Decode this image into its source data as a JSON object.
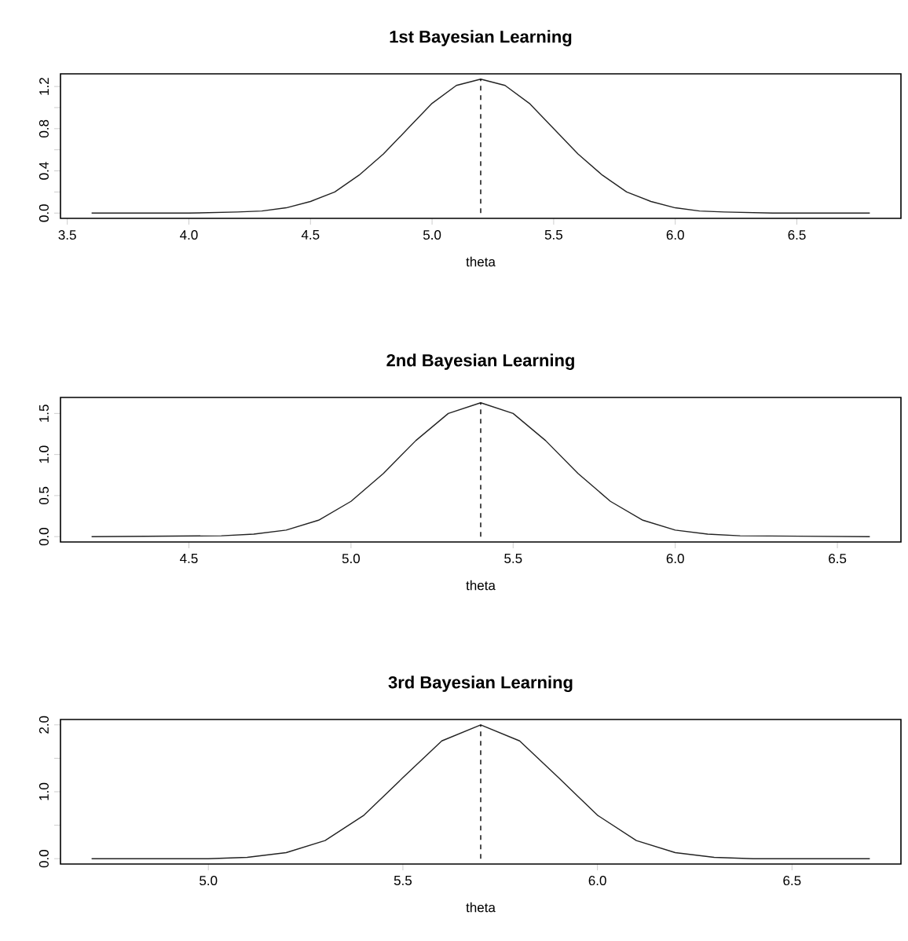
{
  "chart_data": [
    {
      "type": "line",
      "title": "1st Bayesian Learning",
      "xlabel": "theta",
      "x": [
        3.6,
        4.0,
        4.2,
        4.3,
        4.4,
        4.5,
        4.6,
        4.7,
        4.8,
        4.9,
        5.0,
        5.1,
        5.2,
        5.3,
        5.4,
        5.5,
        5.6,
        5.7,
        5.8,
        5.9,
        6.0,
        6.1,
        6.2,
        6.4,
        6.8
      ],
      "values": [
        0,
        0,
        0.01,
        0.02,
        0.05,
        0.11,
        0.2,
        0.36,
        0.56,
        0.8,
        1.04,
        1.21,
        1.27,
        1.21,
        1.04,
        0.8,
        0.56,
        0.36,
        0.2,
        0.11,
        0.05,
        0.02,
        0.01,
        0,
        0
      ],
      "color": "#222222",
      "line_style": "solid",
      "xlim": [
        3.472,
        6.928
      ],
      "ylim": [
        -0.05,
        1.32
      ],
      "xticks": [
        {
          "value": 3.5,
          "label": "3.5"
        },
        {
          "value": 4,
          "label": "4.0"
        },
        {
          "value": 4.5,
          "label": "4.5"
        },
        {
          "value": 5,
          "label": "5.0"
        },
        {
          "value": 5.5,
          "label": "5.5"
        },
        {
          "value": 6,
          "label": "6.0"
        },
        {
          "value": 6.5,
          "label": "6.5"
        }
      ],
      "yticks": [
        {
          "value": 0,
          "label": "0.0"
        },
        {
          "value": 0.2,
          "label": null
        },
        {
          "value": 0.4,
          "label": "0.4"
        },
        {
          "value": 0.6,
          "label": null
        },
        {
          "value": 0.8,
          "label": "0.8"
        },
        {
          "value": 1.0,
          "label": null
        },
        {
          "value": 1.2,
          "label": "1.2"
        }
      ],
      "ref_lines": [
        {
          "axis": "x",
          "value": 5.2,
          "line_style": "dashed"
        }
      ]
    },
    {
      "type": "line",
      "title": "2nd Bayesian Learning",
      "xlabel": "theta",
      "x": [
        4.2,
        4.6,
        4.7,
        4.8,
        4.9,
        5.0,
        5.1,
        5.2,
        5.3,
        5.4,
        5.5,
        5.6,
        5.7,
        5.8,
        5.9,
        6.0,
        6.1,
        6.2,
        6.6
      ],
      "values": [
        0,
        0.01,
        0.03,
        0.08,
        0.2,
        0.43,
        0.77,
        1.17,
        1.5,
        1.63,
        1.5,
        1.17,
        0.77,
        0.43,
        0.2,
        0.08,
        0.03,
        0.01,
        0
      ],
      "color": "#222222",
      "line_style": "solid",
      "xlim": [
        4.104,
        6.696
      ],
      "ylim": [
        -0.065,
        1.695
      ],
      "xticks": [
        {
          "value": 4.5,
          "label": "4.5"
        },
        {
          "value": 5,
          "label": "5.0"
        },
        {
          "value": 5.5,
          "label": "5.5"
        },
        {
          "value": 6,
          "label": "6.0"
        },
        {
          "value": 6.5,
          "label": "6.5"
        }
      ],
      "yticks": [
        {
          "value": 0,
          "label": "0.0"
        },
        {
          "value": 0.5,
          "label": "0.5"
        },
        {
          "value": 1.0,
          "label": "1.0"
        },
        {
          "value": 1.5,
          "label": "1.5"
        }
      ],
      "ref_lines": [
        {
          "axis": "x",
          "value": 5.4,
          "line_style": "dashed"
        }
      ]
    },
    {
      "type": "line",
      "title": "3rd Bayesian Learning",
      "xlabel": "theta",
      "x": [
        4.7,
        5.0,
        5.1,
        5.2,
        5.3,
        5.4,
        5.5,
        5.6,
        5.7,
        5.8,
        5.9,
        6.0,
        6.1,
        6.2,
        6.3,
        6.4,
        6.7
      ],
      "values": [
        0,
        0,
        0.02,
        0.09,
        0.27,
        0.65,
        1.21,
        1.76,
        2.0,
        1.76,
        1.21,
        0.65,
        0.27,
        0.09,
        0.02,
        0,
        0
      ],
      "color": "#222222",
      "line_style": "solid",
      "xlim": [
        4.62,
        6.78
      ],
      "ylim": [
        -0.08,
        2.08
      ],
      "xticks": [
        {
          "value": 5,
          "label": "5.0"
        },
        {
          "value": 5.5,
          "label": "5.5"
        },
        {
          "value": 6,
          "label": "6.0"
        },
        {
          "value": 6.5,
          "label": "6.5"
        }
      ],
      "yticks": [
        {
          "value": 0,
          "label": "0.0"
        },
        {
          "value": 0.5,
          "label": null
        },
        {
          "value": 1.0,
          "label": "1.0"
        },
        {
          "value": 1.5,
          "label": null
        },
        {
          "value": 2.0,
          "label": "2.0"
        }
      ],
      "ref_lines": [
        {
          "axis": "x",
          "value": 5.7,
          "line_style": "dashed"
        }
      ]
    }
  ]
}
